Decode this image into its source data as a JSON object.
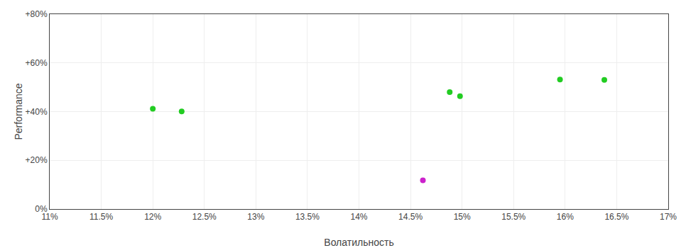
{
  "chart_data": {
    "type": "scatter",
    "xlabel": "Волатильность",
    "ylabel": "Performance",
    "xlim": [
      0.11,
      0.17
    ],
    "ylim": [
      0.0,
      0.8
    ],
    "xticks": [
      {
        "value": 0.11,
        "label": "11%"
      },
      {
        "value": 0.115,
        "label": "11.5%"
      },
      {
        "value": 0.12,
        "label": "12%"
      },
      {
        "value": 0.125,
        "label": "12.5%"
      },
      {
        "value": 0.13,
        "label": "13%"
      },
      {
        "value": 0.135,
        "label": "13.5%"
      },
      {
        "value": 0.14,
        "label": "14%"
      },
      {
        "value": 0.145,
        "label": "14.5%"
      },
      {
        "value": 0.15,
        "label": "15%"
      },
      {
        "value": 0.155,
        "label": "15.5%"
      },
      {
        "value": 0.16,
        "label": "16%"
      },
      {
        "value": 0.165,
        "label": "16.5%"
      },
      {
        "value": 0.17,
        "label": "17%"
      }
    ],
    "yticks": [
      {
        "value": 0.0,
        "label": "0%"
      },
      {
        "value": 0.2,
        "label": "+20%"
      },
      {
        "value": 0.4,
        "label": "+40%"
      },
      {
        "value": 0.6,
        "label": "+60%"
      },
      {
        "value": 0.8,
        "label": "+80%"
      }
    ],
    "grid": true,
    "series": [
      {
        "color": "#22cc22",
        "x": [
          0.12,
          0.1228,
          0.1488,
          0.1498,
          0.1595,
          0.1638
        ],
        "values": [
          0.412,
          0.401,
          0.48,
          0.463,
          0.532,
          0.53
        ]
      },
      {
        "color": "#cc22cc",
        "x": [
          0.1462
        ],
        "values": [
          0.118
        ]
      }
    ]
  }
}
